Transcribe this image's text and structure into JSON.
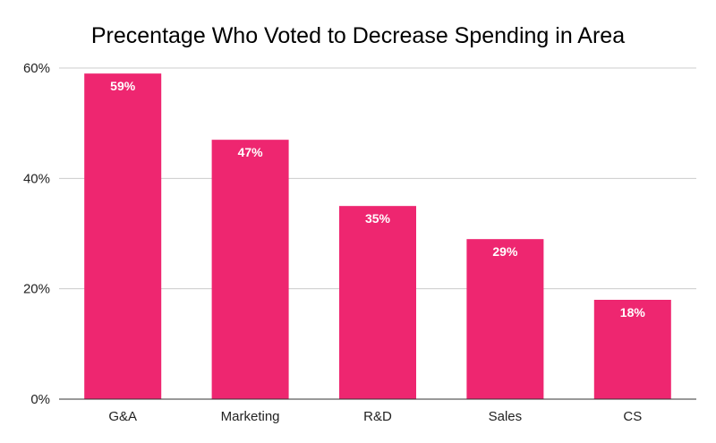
{
  "chart_data": {
    "type": "bar",
    "title": "Precentage Who Voted to Decrease Spending in Area",
    "xlabel": "",
    "ylabel": "",
    "categories": [
      "G&A",
      "Marketing",
      "R&D",
      "Sales",
      "CS"
    ],
    "values": [
      59,
      47,
      35,
      29,
      18
    ],
    "data_labels": [
      "59%",
      "47%",
      "35%",
      "29%",
      "18%"
    ],
    "ylim": [
      0,
      60
    ],
    "y_ticks": [
      0,
      20,
      40,
      60
    ],
    "y_tick_labels": [
      "0%",
      "20%",
      "40%",
      "60%"
    ],
    "grid": true,
    "legend": "none",
    "colors": {
      "bar": "#EE2670",
      "grid": "#cccccc",
      "axis": "#333333"
    }
  }
}
